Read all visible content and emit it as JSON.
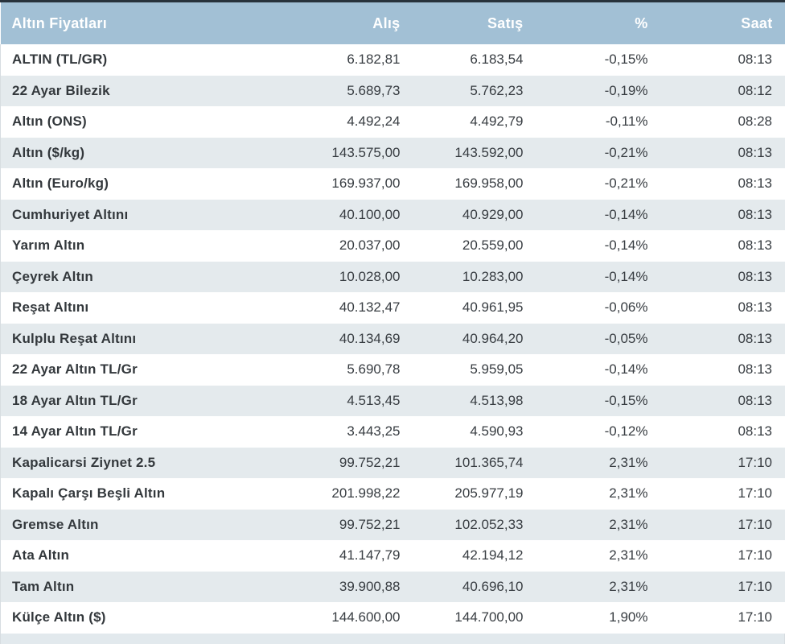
{
  "chart_data": {
    "type": "table",
    "title": "Altın Fiyatları",
    "columns": [
      "Altın Fiyatları",
      "Alış",
      "Satış",
      "%",
      "Saat"
    ],
    "rows": [
      {
        "name": "ALTIN (TL/GR)",
        "alis": "6.182,81",
        "satis": "6.183,54",
        "pct": "-0,15%",
        "saat": "08:13"
      },
      {
        "name": "22 Ayar Bilezik",
        "alis": "5.689,73",
        "satis": "5.762,23",
        "pct": "-0,19%",
        "saat": "08:12"
      },
      {
        "name": "Altın (ONS)",
        "alis": "4.492,24",
        "satis": "4.492,79",
        "pct": "-0,11%",
        "saat": "08:28"
      },
      {
        "name": "Altın ($/kg)",
        "alis": "143.575,00",
        "satis": "143.592,00",
        "pct": "-0,21%",
        "saat": "08:13"
      },
      {
        "name": "Altın (Euro/kg)",
        "alis": "169.937,00",
        "satis": "169.958,00",
        "pct": "-0,21%",
        "saat": "08:13"
      },
      {
        "name": "Cumhuriyet Altını",
        "alis": "40.100,00",
        "satis": "40.929,00",
        "pct": "-0,14%",
        "saat": "08:13"
      },
      {
        "name": "Yarım Altın",
        "alis": "20.037,00",
        "satis": "20.559,00",
        "pct": "-0,14%",
        "saat": "08:13"
      },
      {
        "name": "Çeyrek Altın",
        "alis": "10.028,00",
        "satis": "10.283,00",
        "pct": "-0,14%",
        "saat": "08:13"
      },
      {
        "name": "Reşat Altını",
        "alis": "40.132,47",
        "satis": "40.961,95",
        "pct": "-0,06%",
        "saat": "08:13"
      },
      {
        "name": "Kulplu Reşat Altını",
        "alis": "40.134,69",
        "satis": "40.964,20",
        "pct": "-0,05%",
        "saat": "08:13"
      },
      {
        "name": "22 Ayar Altın TL/Gr",
        "alis": "5.690,78",
        "satis": "5.959,05",
        "pct": "-0,14%",
        "saat": "08:13"
      },
      {
        "name": "18 Ayar Altın TL/Gr",
        "alis": "4.513,45",
        "satis": "4.513,98",
        "pct": "-0,15%",
        "saat": "08:13"
      },
      {
        "name": "14 Ayar Altın TL/Gr",
        "alis": "3.443,25",
        "satis": "4.590,93",
        "pct": "-0,12%",
        "saat": "08:13"
      },
      {
        "name": "Kapalicarsi Ziynet 2.5",
        "alis": "99.752,21",
        "satis": "101.365,74",
        "pct": "2,31%",
        "saat": "17:10"
      },
      {
        "name": "Kapalı Çarşı Beşli Altın",
        "alis": "201.998,22",
        "satis": "205.977,19",
        "pct": "2,31%",
        "saat": "17:10"
      },
      {
        "name": "Gremse Altın",
        "alis": "99.752,21",
        "satis": "102.052,33",
        "pct": "2,31%",
        "saat": "17:10"
      },
      {
        "name": "Ata Altın",
        "alis": "41.147,79",
        "satis": "42.194,12",
        "pct": "2,31%",
        "saat": "17:10"
      },
      {
        "name": "Tam Altın",
        "alis": "39.900,88",
        "satis": "40.696,10",
        "pct": "2,31%",
        "saat": "17:10"
      },
      {
        "name": "Külçe Altın ($)",
        "alis": "144.600,00",
        "satis": "144.700,00",
        "pct": "1,90%",
        "saat": "17:10"
      }
    ]
  },
  "colors": {
    "top_bar": "#28323b",
    "header_bg": "#a2c0d5",
    "header_text": "#ffffff",
    "row_bg": "#ffffff",
    "row_alt_bg": "#e4eaed",
    "body_text": "#383d42"
  }
}
